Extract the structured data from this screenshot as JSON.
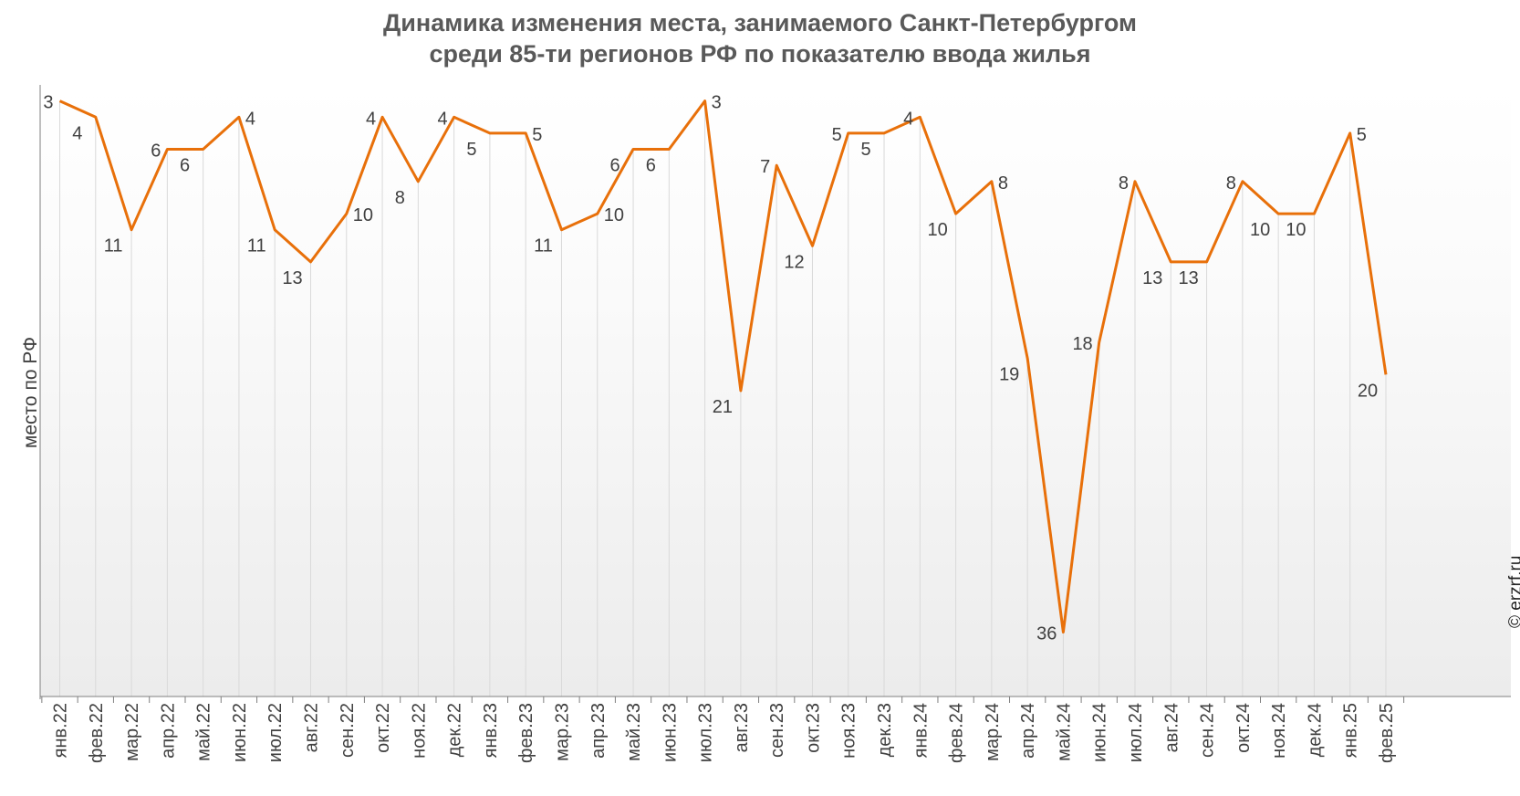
{
  "title": [
    "Динамика изменения места, занимаемого Санкт-Петербургом",
    "среди 85-ти регионов РФ по показателю ввода жилья"
  ],
  "credit": "© erzrf.ru",
  "colors": {
    "line": "#E8700A",
    "grid": "#d9d9d9",
    "text": "#404040",
    "axis": "#7f7f7f"
  },
  "chart_data": {
    "type": "line",
    "title": "Динамика изменения места, занимаемого Санкт-Петербургом среди 85-ти регионов РФ по показателю ввода жилья",
    "xlabel": "",
    "ylabel": "место по РФ",
    "y_inverted": true,
    "ylim": [
      2,
      40
    ],
    "grid": "vertical",
    "legend": "none",
    "categories": [
      "янв.22",
      "фев.22",
      "мар.22",
      "апр.22",
      "май.22",
      "июн.22",
      "июл.22",
      "авг.22",
      "сен.22",
      "окт.22",
      "ноя.22",
      "дек.22",
      "янв.23",
      "фев.23",
      "мар.23",
      "апр.23",
      "май.23",
      "июн.23",
      "июл.23",
      "авг.23",
      "сен.23",
      "окт.23",
      "ноя.23",
      "дек.23",
      "янв.24",
      "фев.24",
      "мар.24",
      "апр.24",
      "май.24",
      "июн.24",
      "июл.24",
      "авг.24",
      "сен.24",
      "окт.24",
      "ноя.24",
      "дек.24",
      "янв.25",
      "фев.25"
    ],
    "values": [
      3,
      4,
      11,
      6,
      6,
      4,
      11,
      13,
      10,
      4,
      8,
      4,
      5,
      5,
      11,
      10,
      6,
      6,
      3,
      21,
      7,
      12,
      5,
      5,
      4,
      10,
      8,
      19,
      36,
      18,
      8,
      13,
      13,
      8,
      10,
      10,
      5,
      20
    ],
    "label_positions": [
      "L",
      "B",
      "B",
      "L",
      "B",
      "R",
      "B",
      "B",
      "R",
      "L",
      "B",
      "L",
      "B",
      "R",
      "B",
      "R",
      "B",
      "B",
      "R",
      "B",
      "L",
      "B",
      "L",
      "B",
      "L",
      "B",
      "R",
      "B",
      "L",
      "L",
      "L",
      "B",
      "B",
      "L",
      "B",
      "B",
      "R",
      "B"
    ]
  }
}
